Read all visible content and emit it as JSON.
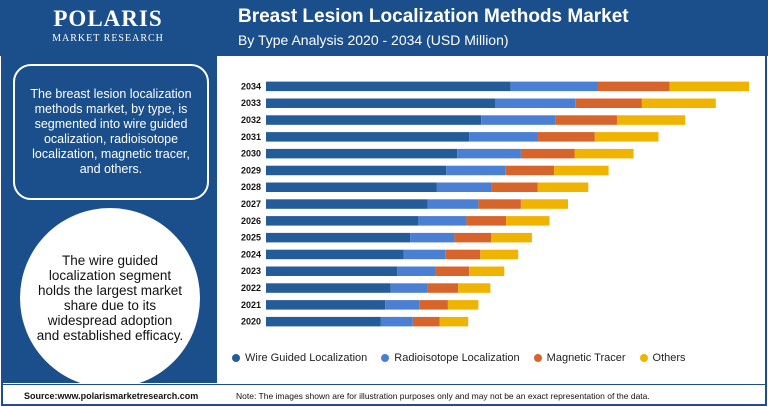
{
  "brand": {
    "name": "POLARIS",
    "tagline": "MARKET RESEARCH"
  },
  "header": {
    "title": "Breast Lesion Localization Methods Market",
    "subtitle": "By Type Analysis 2020 - 2034 (USD Million)"
  },
  "panel": {
    "summary": "The breast lesion localization methods market, by type, is segmented into wire guided ocalization, radioisotope localization, magnetic tracer, and others.",
    "highlight": "The wire guided localization segment holds the largest market share due to its widespread adoption and established efficacy."
  },
  "colors": {
    "header_bg": "#1a4f8b"
  },
  "chart_data": {
    "type": "bar",
    "orientation": "horizontal",
    "stacked": true,
    "categories": [
      "2034",
      "2033",
      "2032",
      "2031",
      "2030",
      "2029",
      "2028",
      "2027",
      "2026",
      "2025",
      "2024",
      "2023",
      "2022",
      "2021",
      "2020"
    ],
    "series": [
      {
        "name": "Wire Guided Localization",
        "color": "#245c99",
        "values": [
          265,
          248,
          233,
          220,
          207,
          195,
          185,
          175,
          165,
          156,
          149,
          142,
          135,
          129,
          124
        ]
      },
      {
        "name": "Radioisotope Localization",
        "color": "#4a7fd3",
        "values": [
          94,
          87,
          80,
          74,
          69,
          64,
          59,
          55,
          52,
          48,
          45,
          42,
          40,
          37,
          35
        ]
      },
      {
        "name": "Magnetic Tracer",
        "color": "#d7642a",
        "values": [
          78,
          72,
          67,
          62,
          58,
          53,
          50,
          46,
          43,
          40,
          38,
          36,
          33,
          31,
          29
        ]
      },
      {
        "name": "Others",
        "color": "#f0b400",
        "values": [
          86,
          80,
          74,
          69,
          64,
          59,
          55,
          51,
          47,
          44,
          41,
          38,
          35,
          33,
          31
        ]
      }
    ],
    "grid": false,
    "legend": "bottom"
  },
  "footer": {
    "source": "Source:www.polarismarketresearch.com",
    "note": "Note: The images shown are for illustration purposes only and may not be an exact representation of the data."
  }
}
